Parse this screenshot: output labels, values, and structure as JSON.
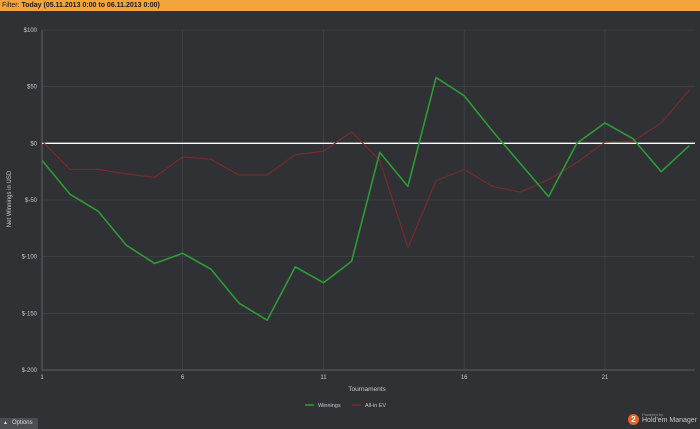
{
  "filter": {
    "label": "Filter: ",
    "value": "Today (05.11.2013 0:00 to 06.11.2013 0:00)"
  },
  "options_label": "Options",
  "brand": {
    "badge": "2",
    "powered_by": "Powered by",
    "name": "Hold'em Manager"
  },
  "colors": {
    "background": "#2f3134",
    "grid": "#45484c",
    "zero_line": "#ffffff",
    "winnings": "#2e9b35",
    "allin_ev": "#7a2a2c",
    "filter_bar": "#f3a43a"
  },
  "chart_data": {
    "type": "line",
    "title": "",
    "xlabel": "Tournaments",
    "ylabel": "Net Winnings in USD",
    "x": [
      1,
      2,
      3,
      4,
      5,
      6,
      7,
      8,
      9,
      10,
      11,
      12,
      13,
      14,
      15,
      16,
      17,
      18,
      19,
      20,
      21,
      22,
      23,
      24
    ],
    "xticks": [
      1,
      6,
      11,
      16,
      21
    ],
    "xlim": [
      1,
      24.2
    ],
    "ylim": [
      -200,
      100
    ],
    "yticks": [
      100,
      50,
      0,
      -50,
      -100,
      -150,
      -200
    ],
    "ytick_labels": [
      "$100",
      "$50",
      "$0",
      "$-50",
      "$-100",
      "$-150",
      "$-200"
    ],
    "grid": true,
    "zero_line": true,
    "legend_position": "bottom-center",
    "series": [
      {
        "name": "Winnings",
        "color": "#2e9b35",
        "values": [
          -15,
          -45,
          -60,
          -90,
          -106,
          -97,
          -111,
          -141,
          -156,
          -109,
          -123,
          -104,
          -8,
          -38,
          58,
          42,
          11,
          -18,
          -47,
          0,
          18,
          4,
          -25,
          -2
        ]
      },
      {
        "name": "All-in EV",
        "color": "#7a2a2c",
        "values": [
          2,
          -23,
          -23,
          -27,
          -30,
          -12,
          -14,
          -28,
          -28,
          -10,
          -7,
          10,
          -15,
          -92,
          -33,
          -23,
          -38,
          -43,
          -32,
          -17,
          1,
          2,
          18,
          47
        ]
      }
    ]
  }
}
